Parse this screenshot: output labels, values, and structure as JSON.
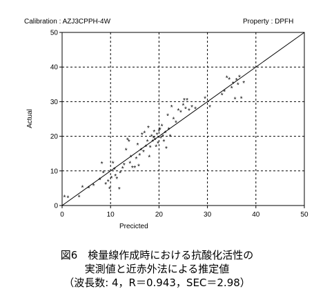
{
  "header": {
    "calibration": "Calibration : AZJ3CPPH-4W",
    "property": "Property    : DPFH"
  },
  "caption": {
    "line1": "図6　検量線作成時における抗酸化活性の",
    "line2": "実測値と近赤外法による推定値",
    "line3": "（波長数: 4，R＝0.943，SEC＝2.98）"
  },
  "chart_data": {
    "type": "scatter",
    "xlabel": "Precicted",
    "ylabel": "Actual",
    "xlim": [
      0,
      50
    ],
    "ylim": [
      0,
      50
    ],
    "xticks": [
      0,
      10,
      20,
      30,
      40,
      50
    ],
    "yticks": [
      0,
      10,
      20,
      30,
      40,
      50
    ],
    "grid": true,
    "grid_style": "dashed",
    "reference_line": {
      "from": [
        0,
        0
      ],
      "to": [
        50,
        50
      ]
    },
    "marker": "*",
    "points": [
      [
        0.5,
        2.5
      ],
      [
        1.2,
        2.3
      ],
      [
        3.5,
        2.5
      ],
      [
        4.2,
        5.3
      ],
      [
        5.5,
        5.1
      ],
      [
        6.5,
        5.8
      ],
      [
        7.8,
        7.5
      ],
      [
        8.2,
        12.2
      ],
      [
        8.5,
        9.5
      ],
      [
        9.0,
        6.2
      ],
      [
        9.5,
        7.0
      ],
      [
        9.8,
        4.9
      ],
      [
        10.2,
        8.0
      ],
      [
        10.5,
        12.3
      ],
      [
        10.8,
        10.5
      ],
      [
        11.0,
        8.6
      ],
      [
        11.3,
        7.8
      ],
      [
        11.8,
        4.8
      ],
      [
        12.0,
        9.5
      ],
      [
        12.5,
        10.8
      ],
      [
        12.8,
        11.8
      ],
      [
        13.2,
        16.0
      ],
      [
        13.5,
        19.0
      ],
      [
        13.8,
        18.5
      ],
      [
        14.0,
        12.3
      ],
      [
        14.2,
        14.0
      ],
      [
        14.5,
        11.0
      ],
      [
        15.0,
        11.0
      ],
      [
        15.3,
        13.5
      ],
      [
        15.6,
        17.5
      ],
      [
        15.8,
        11.5
      ],
      [
        16.0,
        14.5
      ],
      [
        16.3,
        16.0
      ],
      [
        16.5,
        20.5
      ],
      [
        16.8,
        15.5
      ],
      [
        17.0,
        21.0
      ],
      [
        17.3,
        17.0
      ],
      [
        17.6,
        18.5
      ],
      [
        17.8,
        22.5
      ],
      [
        18.0,
        14.0
      ],
      [
        18.2,
        16.8
      ],
      [
        18.5,
        20.0
      ],
      [
        18.7,
        18.5
      ],
      [
        18.9,
        19.5
      ],
      [
        19.0,
        21.3
      ],
      [
        19.2,
        19.0
      ],
      [
        19.4,
        17.0
      ],
      [
        19.6,
        20.5
      ],
      [
        19.8,
        18.0
      ],
      [
        20.0,
        21.5
      ],
      [
        20.2,
        22.0
      ],
      [
        20.4,
        19.5
      ],
      [
        20.6,
        23.0
      ],
      [
        20.8,
        20.0
      ],
      [
        21.0,
        18.5
      ],
      [
        21.3,
        21.0
      ],
      [
        21.5,
        16.5
      ],
      [
        21.8,
        26.0
      ],
      [
        22.0,
        22.0
      ],
      [
        22.3,
        20.0
      ],
      [
        22.6,
        28.5
      ],
      [
        23.0,
        25.0
      ],
      [
        23.5,
        24.0
      ],
      [
        24.0,
        27.5
      ],
      [
        24.5,
        27.0
      ],
      [
        25.0,
        29.0
      ],
      [
        25.2,
        30.5
      ],
      [
        25.5,
        28.0
      ],
      [
        25.8,
        30.5
      ],
      [
        26.2,
        27.5
      ],
      [
        26.8,
        28.5
      ],
      [
        27.5,
        28.0
      ],
      [
        29.5,
        31.0
      ],
      [
        30.5,
        28.5
      ],
      [
        33.0,
        32.0
      ],
      [
        33.5,
        33.0
      ],
      [
        34.0,
        37.0
      ],
      [
        34.5,
        36.5
      ],
      [
        35.0,
        34.0
      ],
      [
        35.3,
        35.3
      ],
      [
        35.7,
        30.8
      ],
      [
        36.0,
        36.3
      ],
      [
        36.3,
        35.0
      ],
      [
        36.6,
        37.2
      ],
      [
        37.0,
        31.0
      ],
      [
        37.5,
        35.5
      ]
    ]
  }
}
